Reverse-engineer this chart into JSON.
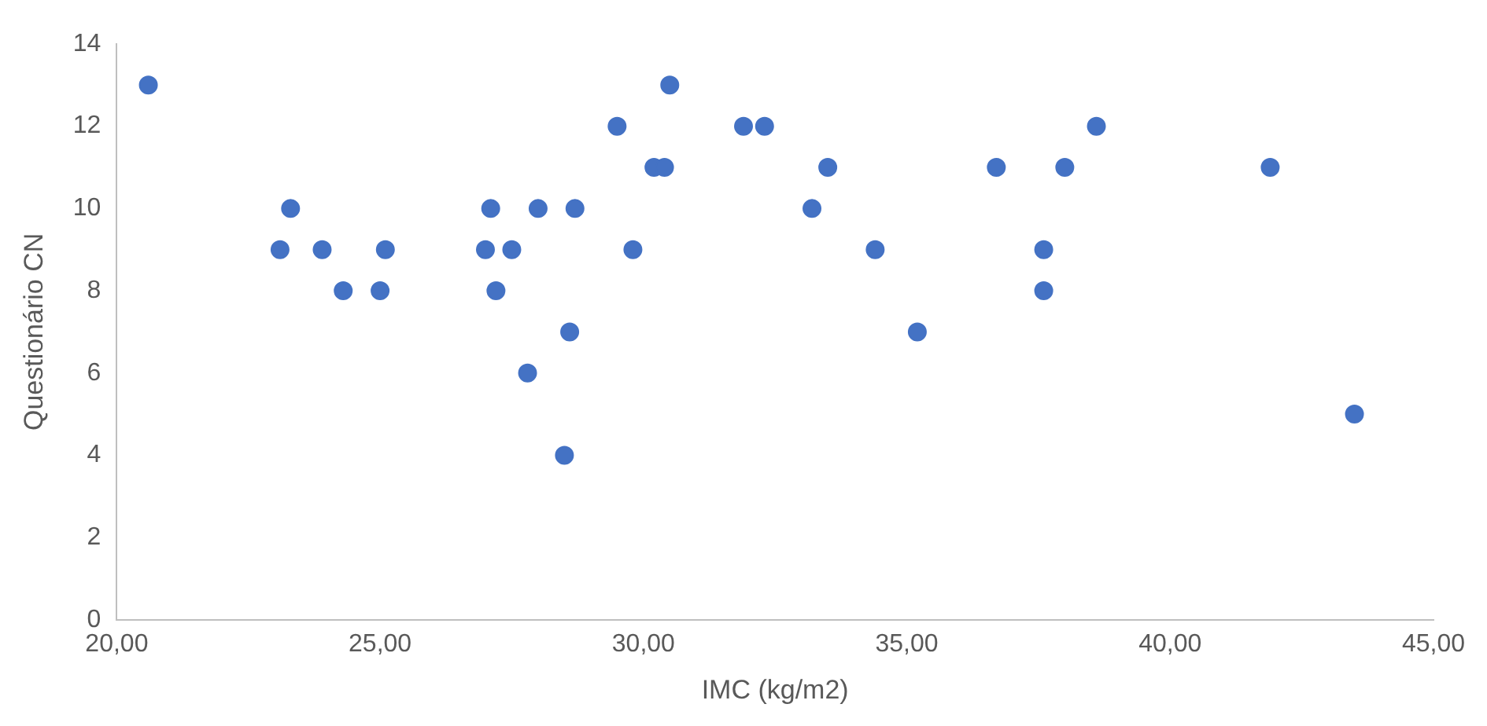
{
  "chart_data": {
    "type": "scatter",
    "xlabel": "IMC (kg/m2)",
    "ylabel": "Questionário CN",
    "x": [
      20.6,
      23.1,
      23.3,
      23.9,
      24.3,
      25.0,
      25.1,
      27.0,
      27.1,
      27.2,
      27.5,
      27.8,
      28.0,
      28.6,
      28.5,
      28.7,
      29.5,
      29.8,
      30.2,
      30.4,
      30.5,
      31.9,
      32.3,
      33.2,
      33.5,
      34.4,
      35.2,
      36.7,
      37.6,
      37.6,
      38.0,
      38.6,
      41.9,
      43.5
    ],
    "series": [
      {
        "color": "#4472c4",
        "values": [
          13,
          9,
          10,
          9,
          8,
          8,
          9,
          9,
          10,
          8,
          9,
          6,
          10,
          7,
          4,
          10,
          12,
          9,
          11,
          11,
          13,
          12,
          12,
          10,
          11,
          9,
          7,
          11,
          8,
          9,
          11,
          12,
          11,
          5
        ]
      }
    ],
    "xlim": [
      20,
      45
    ],
    "xticks": [
      {
        "value": 20,
        "label": "20,00"
      },
      {
        "value": 25,
        "label": "25,00"
      },
      {
        "value": 30,
        "label": "30,00"
      },
      {
        "value": 35,
        "label": "35,00"
      },
      {
        "value": 40,
        "label": "40,00"
      },
      {
        "value": 45,
        "label": "45,00"
      }
    ],
    "ylim": [
      0,
      14
    ],
    "yticks": [
      0,
      2,
      4,
      6,
      8,
      10,
      12,
      14
    ],
    "grid": false,
    "legend": false,
    "marker": "circle"
  }
}
